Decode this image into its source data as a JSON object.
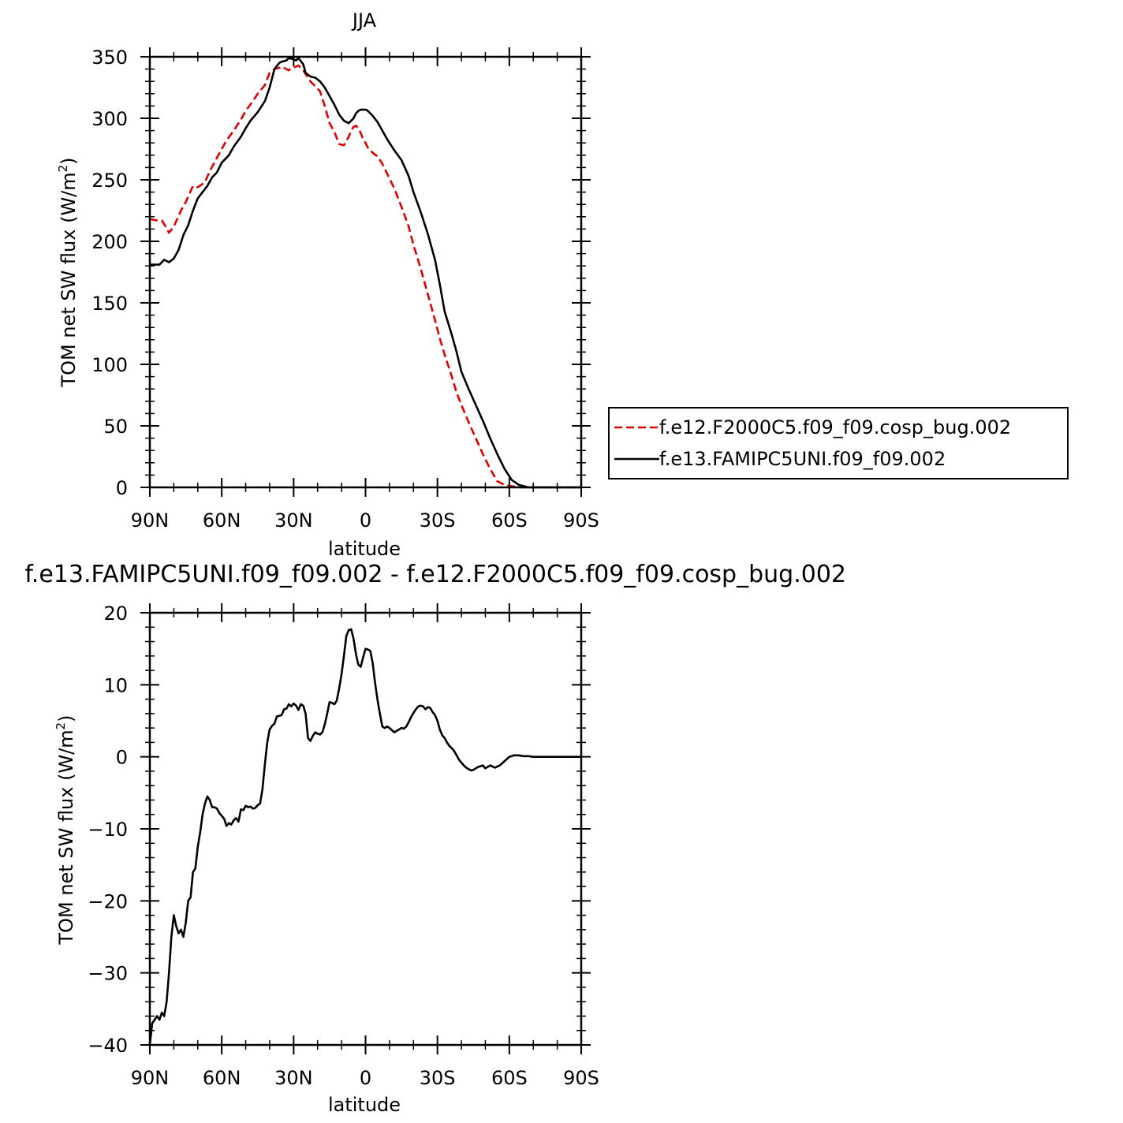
{
  "chart_data": [
    {
      "type": "line",
      "title": "JJA",
      "xlabel": "latitude",
      "ylabel": "TOM net SW flux (W/m",
      "ylabel_sup": "2",
      "ylabel_end": ")",
      "xlim": [
        90,
        -90
      ],
      "ylim": [
        0,
        350
      ],
      "yticks": [
        0,
        50,
        100,
        150,
        200,
        250,
        300,
        350
      ],
      "xticks": [
        {
          "v": 90,
          "label": "90N"
        },
        {
          "v": 60,
          "label": "60N"
        },
        {
          "v": 30,
          "label": "30N"
        },
        {
          "v": 0,
          "label": "0"
        },
        {
          "v": -30,
          "label": "30S"
        },
        {
          "v": -60,
          "label": "60S"
        },
        {
          "v": -90,
          "label": "90S"
        }
      ],
      "legend_position": "right",
      "series": [
        {
          "name": "f.e12.F2000C5.f09_f09.cosp_bug.002",
          "color": "#e00000",
          "dash": "dashed",
          "x": [
            90,
            87,
            85,
            84,
            82,
            80,
            77,
            75,
            72,
            70,
            67,
            65,
            62,
            60,
            58,
            55,
            52,
            50,
            47,
            45,
            42,
            40,
            38,
            36,
            35,
            33,
            32,
            31,
            29,
            28,
            26,
            25,
            23,
            21,
            19,
            17,
            15,
            13,
            11,
            9,
            7,
            6,
            5,
            4,
            3,
            2,
            1,
            0,
            -1,
            -3,
            -5,
            -7,
            -9,
            -12,
            -15,
            -18,
            -20,
            -23,
            -26,
            -29,
            -31,
            -33,
            -36,
            -38,
            -40,
            -43,
            -46,
            -49,
            -52,
            -55,
            -58,
            -61,
            -64,
            -66,
            -68,
            -70,
            -72,
            -74,
            -76,
            -78,
            -80,
            -83,
            -86,
            -90
          ],
          "y": [
            218,
            217,
            217,
            214,
            207,
            212,
            225,
            232,
            245,
            244,
            248,
            257,
            268,
            275,
            282,
            290,
            299,
            306,
            314,
            320,
            327,
            337,
            340,
            341,
            342,
            340,
            339,
            341,
            342,
            343,
            339,
            336,
            330,
            326,
            322,
            310,
            296,
            289,
            279,
            278,
            285,
            290,
            293,
            294,
            292,
            288,
            283,
            280,
            276,
            272,
            269,
            263,
            255,
            243,
            228,
            212,
            197,
            178,
            157,
            136,
            121,
            108,
            90,
            77,
            67,
            53,
            40,
            27,
            15,
            5,
            2,
            1,
            0,
            0,
            0,
            0,
            0,
            0,
            0,
            0,
            0,
            0,
            0,
            0
          ]
        },
        {
          "name": "f.e13.FAMIPC5UNI.f09_f09.002",
          "color": "#000000",
          "dash": "solid",
          "x": [
            90,
            88,
            86,
            85,
            84,
            83,
            82,
            80,
            78,
            76,
            74,
            72,
            70,
            68,
            66,
            64,
            62,
            60,
            57,
            55,
            52,
            50,
            48,
            45,
            42,
            40,
            38,
            36,
            35,
            33,
            32,
            30,
            29,
            28,
            26,
            25,
            23,
            21,
            19,
            17,
            15,
            13,
            11,
            9,
            7,
            5,
            4,
            3,
            2,
            1,
            0,
            -1,
            -3,
            -5,
            -7,
            -9,
            -12,
            -15,
            -18,
            -20,
            -23,
            -26,
            -29,
            -31,
            -33,
            -36,
            -38,
            -40,
            -43,
            -46,
            -49,
            -52,
            -55,
            -58,
            -61,
            -64,
            -66,
            -68,
            -70,
            -72,
            -74,
            -76,
            -78,
            -80,
            -83,
            -86,
            -90
          ],
          "y": [
            181,
            181,
            181,
            183,
            185,
            184,
            183,
            186,
            193,
            205,
            213,
            225,
            235,
            240,
            245,
            252,
            256,
            264,
            270,
            277,
            285,
            292,
            298,
            305,
            314,
            325,
            340,
            345,
            346,
            347,
            349,
            348,
            347,
            349,
            344,
            337,
            334,
            333,
            330,
            325,
            318,
            311,
            303,
            298,
            296,
            300,
            304,
            306,
            307,
            307,
            307,
            306,
            302,
            297,
            290,
            283,
            274,
            266,
            253,
            240,
            224,
            206,
            185,
            165,
            143,
            124,
            110,
            94,
            80,
            67,
            54,
            40,
            27,
            15,
            6,
            2,
            1,
            0,
            0,
            0,
            0,
            0,
            0,
            0,
            0,
            0,
            0
          ]
        }
      ]
    },
    {
      "type": "line",
      "title": "f.e13.FAMIPC5UNI.f09_f09.002 - f.e12.F2000C5.f09_f09.cosp_bug.002",
      "xlabel": "latitude",
      "ylabel": "TOM net SW flux (W/m",
      "ylabel_sup": "2",
      "ylabel_end": ")",
      "xlim": [
        90,
        -90
      ],
      "ylim": [
        -40,
        20
      ],
      "yticks": [
        -40,
        -30,
        -20,
        -10,
        0,
        10,
        20
      ],
      "ytick_labels": [
        "−40",
        "−30",
        "−20",
        "−10",
        "0",
        "10",
        "20"
      ],
      "xticks": [
        {
          "v": 90,
          "label": "90N"
        },
        {
          "v": 60,
          "label": "60N"
        },
        {
          "v": 30,
          "label": "30N"
        },
        {
          "v": 0,
          "label": "0"
        },
        {
          "v": -30,
          "label": "30S"
        },
        {
          "v": -60,
          "label": "60S"
        },
        {
          "v": -90,
          "label": "90S"
        }
      ],
      "series": [
        {
          "color": "#000000",
          "dash": "solid",
          "x": [
            90,
            89,
            88,
            87,
            86,
            85,
            84,
            83,
            82,
            81,
            80,
            79,
            78,
            77,
            76,
            75,
            74,
            73,
            72,
            71,
            70,
            69,
            68,
            67,
            66,
            65,
            64,
            63,
            62,
            61,
            60,
            59,
            58,
            57,
            56,
            55,
            54,
            53,
            52,
            51,
            50,
            49,
            48,
            47,
            46,
            45,
            44,
            43,
            42,
            41,
            40,
            39,
            38,
            37,
            36,
            35,
            34,
            33,
            32,
            31,
            30,
            29,
            28,
            27,
            26,
            25,
            24,
            23,
            22,
            21,
            20,
            19,
            18,
            17,
            16,
            15,
            14,
            13,
            12,
            11,
            10,
            9,
            8,
            7,
            6,
            5,
            4,
            3,
            2,
            1,
            0,
            -1,
            -2,
            -3,
            -4,
            -5,
            -6,
            -7,
            -8,
            -9,
            -10,
            -11,
            -12,
            -13,
            -14,
            -15,
            -16,
            -17,
            -18,
            -19,
            -20,
            -21,
            -22,
            -23,
            -24,
            -25,
            -26,
            -27,
            -28,
            -29,
            -30,
            -31,
            -32,
            -33,
            -34,
            -35,
            -36,
            -37,
            -38,
            -39,
            -40,
            -41,
            -42,
            -43,
            -44,
            -45,
            -46,
            -47,
            -48,
            -49,
            -50,
            -52,
            -54,
            -56,
            -58,
            -60,
            -62,
            -64,
            -66,
            -68,
            -70,
            -72,
            -75,
            -80,
            -85,
            -90
          ],
          "y": [
            -40,
            -37,
            -36.5,
            -36,
            -36.5,
            -35.5,
            -36,
            -34,
            -30,
            -25,
            -22,
            -23.5,
            -24.5,
            -24,
            -25,
            -23,
            -20,
            -19.5,
            -16,
            -15.5,
            -12.5,
            -10.5,
            -8,
            -6.5,
            -5.5,
            -6,
            -7,
            -7,
            -7.2,
            -7.8,
            -8.2,
            -8.6,
            -9.6,
            -9.2,
            -9.4,
            -8.8,
            -8.5,
            -9.0,
            -7.3,
            -7.4,
            -6.8,
            -7.0,
            -6.9,
            -7.2,
            -7.1,
            -6.7,
            -6.5,
            -4.5,
            -1,
            2,
            3.8,
            4.3,
            4.6,
            5.6,
            5.7,
            5.8,
            6.6,
            6.7,
            7.3,
            7.0,
            7.4,
            7.1,
            6.5,
            7.3,
            7.1,
            6.0,
            2.6,
            2.2,
            2.9,
            3.4,
            3.2,
            3.1,
            3.4,
            4.5,
            6.0,
            7.6,
            7.5,
            7.3,
            7.8,
            9.5,
            11.5,
            14.0,
            16.8,
            17.6,
            17.7,
            16.4,
            14.3,
            12.8,
            12.5,
            13.8,
            15.0,
            14.9,
            14.7,
            13.0,
            10.2,
            7.9,
            6.0,
            4.2,
            4.0,
            4.2,
            4.0,
            3.7,
            3.4,
            3.6,
            3.8,
            4.0,
            3.9,
            4.2,
            4.8,
            5.5,
            6.1,
            6.6,
            7.0,
            7.1,
            7.0,
            6.6,
            6.9,
            6.8,
            6.2,
            5.8,
            5.0,
            3.8,
            3.0,
            2.6,
            2.0,
            1.5,
            1.2,
            0.8,
            0.2,
            -0.4,
            -0.8,
            -1.2,
            -1.5,
            -1.7,
            -1.9,
            -1.8,
            -1.6,
            -1.4,
            -1.3,
            -1.2,
            -1.6,
            -1.2,
            -1.5,
            -1.2,
            -0.6,
            0.0,
            0.2,
            0.2,
            0.1,
            0.1,
            0.0,
            0.0,
            0.0,
            0.0,
            0.0,
            0.0
          ]
        }
      ]
    }
  ]
}
